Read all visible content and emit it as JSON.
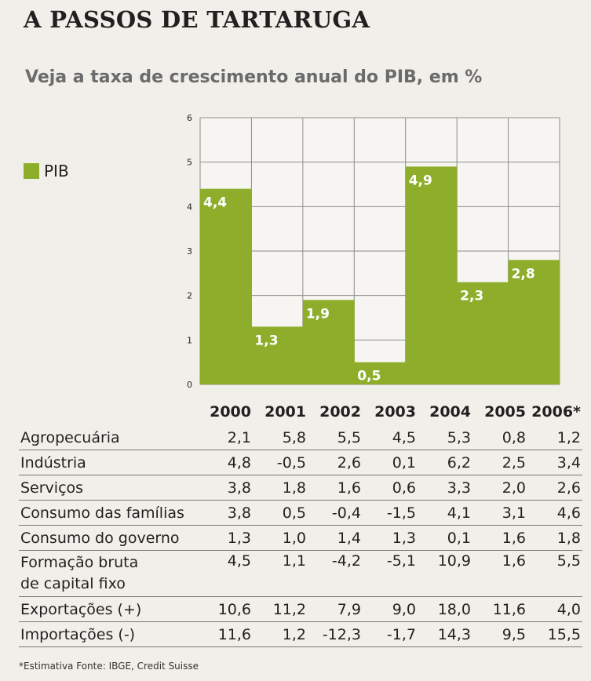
{
  "title": "A PASSOS DE TARTARUGA",
  "subtitle": "Veja a taxa de crescimento anual do PIB, em %",
  "colors": {
    "bar": "#8eae2b",
    "grid": "#8c8c8c",
    "label": "#ffffff"
  },
  "chart_data": {
    "type": "bar",
    "categories": [
      "2000",
      "2001",
      "2002",
      "2003",
      "2004",
      "2005",
      "2006*"
    ],
    "series": [
      {
        "name": "PIB",
        "values": [
          4.4,
          1.3,
          1.9,
          0.5,
          4.9,
          2.3,
          2.8
        ]
      }
    ],
    "value_labels": [
      "4,4",
      "1,3",
      "1,9",
      "0,5",
      "4,9",
      "2,3",
      "2,8"
    ],
    "ylim": [
      0,
      6
    ],
    "yticks": [
      "0",
      "1",
      "2",
      "3",
      "4",
      "5",
      "6"
    ],
    "grid": true,
    "legend": "left"
  },
  "table": {
    "years": [
      "2000",
      "2001",
      "2002",
      "2003",
      "2004",
      "2005",
      "2006*"
    ],
    "rows": [
      {
        "label": "Agropecuária",
        "values": [
          "2,1",
          "5,8",
          "5,5",
          "4,5",
          "5,3",
          "0,8",
          "1,2"
        ]
      },
      {
        "label": "Indústria",
        "values": [
          "4,8",
          "-0,5",
          "2,6",
          "0,1",
          "6,2",
          "2,5",
          "3,4"
        ]
      },
      {
        "label": "Serviços",
        "values": [
          "3,8",
          "1,8",
          "1,6",
          "0,6",
          "3,3",
          "2,0",
          "2,6"
        ]
      },
      {
        "label": "Consumo das famílias",
        "values": [
          "3,8",
          "0,5",
          "-0,4",
          "-1,5",
          "4,1",
          "3,1",
          "4,6"
        ]
      },
      {
        "label": "Consumo do governo",
        "values": [
          "1,3",
          "1,0",
          "1,4",
          "1,3",
          "0,1",
          "1,6",
          "1,8"
        ]
      },
      {
        "label": "Formação bruta",
        "label2": "de capital fixo",
        "values": [
          "4,5",
          "1,1",
          "-4,2",
          "-5,1",
          "10,9",
          "1,6",
          "5,5"
        ]
      },
      {
        "label": "Exportações (+)",
        "values": [
          "10,6",
          "11,2",
          "7,9",
          "9,0",
          "18,0",
          "11,6",
          "4,0"
        ]
      },
      {
        "label": "Importações (-)",
        "values": [
          "11,6",
          "1,2",
          "-12,3",
          "-1,7",
          "14,3",
          "9,5",
          "15,5"
        ]
      }
    ]
  },
  "footnote": "*Estimativa  Fonte: IBGE, Credit Suisse"
}
